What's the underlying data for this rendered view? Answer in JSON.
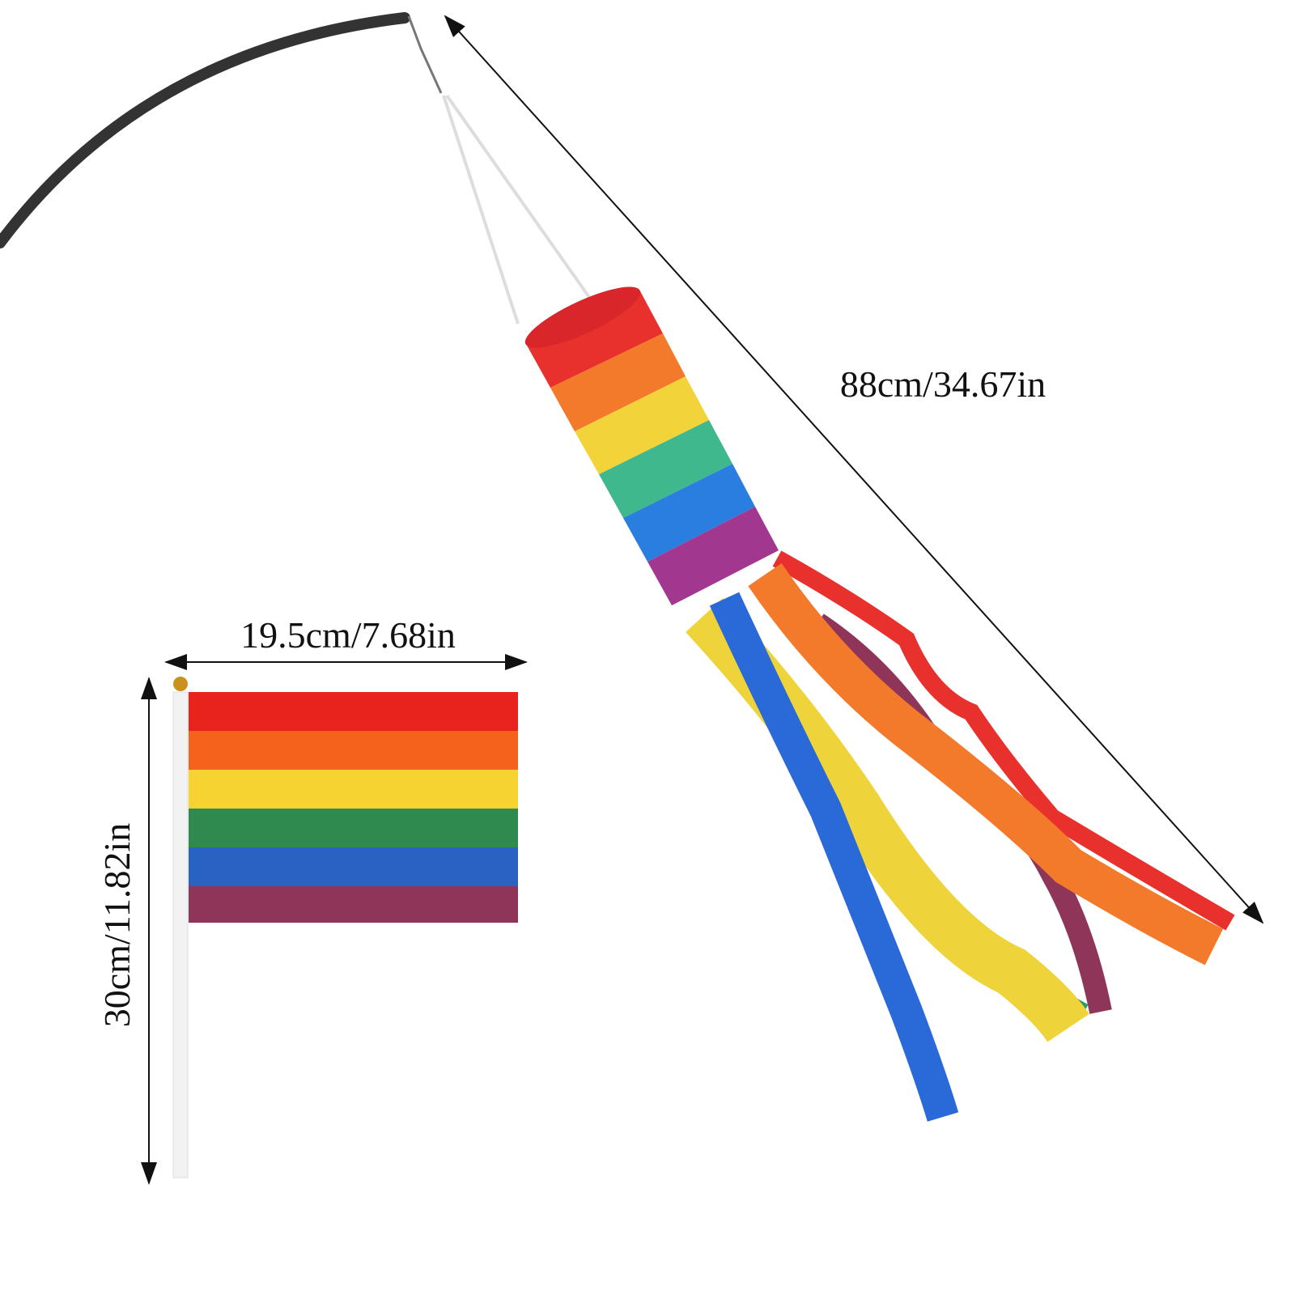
{
  "dimensions": {
    "windsock_length": "88cm/34.67in",
    "flag_width": "19.5cm/7.68in",
    "flag_height": "30cm/11.82in"
  }
}
